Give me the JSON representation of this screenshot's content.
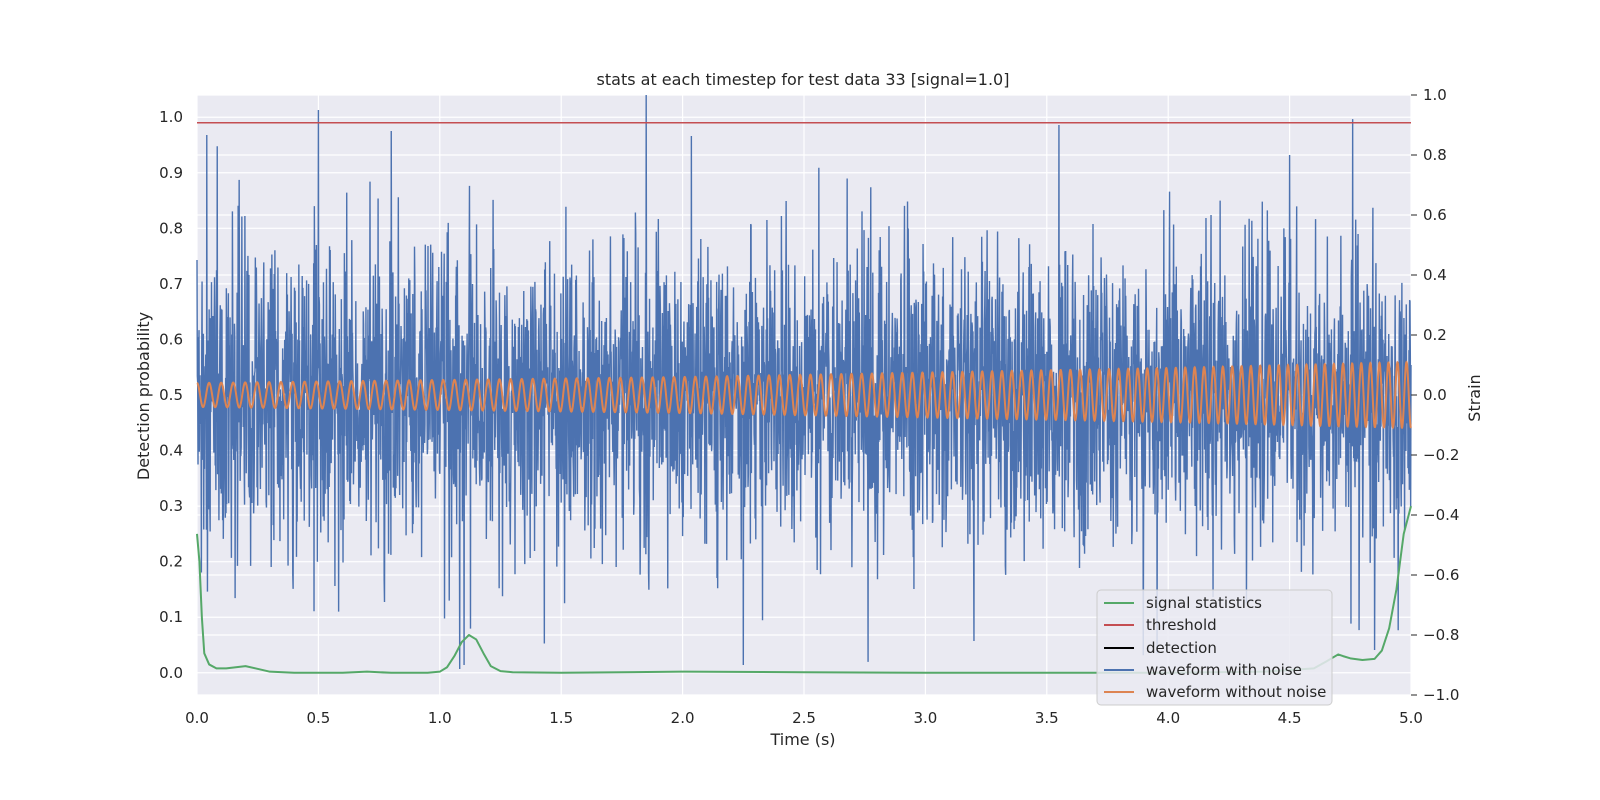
{
  "chart_data": {
    "type": "line",
    "title": "stats at each timestep for test data 33 [signal=1.0]",
    "xlabel": "Time (s)",
    "ylabel": "Detection probability",
    "ylabel_right": "Strain",
    "xlim": [
      0.0,
      5.0
    ],
    "ylim": [
      -0.04,
      1.04
    ],
    "ylim_right": [
      -1.0,
      1.0
    ],
    "x_ticks": [
      "0.0",
      "0.5",
      "1.0",
      "1.5",
      "2.0",
      "2.5",
      "3.0",
      "3.5",
      "4.0",
      "4.5",
      "5.0"
    ],
    "y_ticks": [
      "0.0",
      "0.1",
      "0.2",
      "0.3",
      "0.4",
      "0.5",
      "0.6",
      "0.7",
      "0.8",
      "0.9",
      "1.0"
    ],
    "y_ticks_right": [
      "−1.0",
      "−0.8",
      "−0.6",
      "−0.4",
      "−0.2",
      "0.0",
      "0.2",
      "0.4",
      "0.6",
      "0.8",
      "1.0"
    ],
    "grid": true,
    "background": "#eaeaf2",
    "legend_position": "lower-right",
    "legend": [
      "signal statistics",
      "threshold",
      "detection",
      "waveform with noise",
      "waveform without noise"
    ],
    "colors": {
      "signal_statistics": "#55a868",
      "threshold": "#c44e52",
      "detection": "#000000",
      "waveform_with_noise": "#4c72b0",
      "waveform_without_noise": "#dd8452"
    },
    "series": [
      {
        "name": "signal statistics",
        "axis": "left",
        "x": [
          0.0,
          0.01,
          0.02,
          0.03,
          0.05,
          0.08,
          0.12,
          0.16,
          0.2,
          0.24,
          0.3,
          0.4,
          0.6,
          0.7,
          0.8,
          0.95,
          1.0,
          1.03,
          1.06,
          1.09,
          1.12,
          1.15,
          1.18,
          1.21,
          1.25,
          1.3,
          1.5,
          2.0,
          2.5,
          3.0,
          3.5,
          4.0,
          4.4,
          4.6,
          4.65,
          4.7,
          4.72,
          4.75,
          4.8,
          4.85,
          4.88,
          4.91,
          4.94,
          4.97,
          5.0
        ],
        "values": [
          0.25,
          0.2,
          0.1,
          0.035,
          0.015,
          0.008,
          0.008,
          0.01,
          0.012,
          0.008,
          0.002,
          0.0,
          0.0,
          0.002,
          0.0,
          0.0,
          0.002,
          0.01,
          0.03,
          0.055,
          0.068,
          0.06,
          0.035,
          0.012,
          0.003,
          0.001,
          0.0,
          0.002,
          0.001,
          0.0,
          0.0,
          0.0,
          0.002,
          0.008,
          0.02,
          0.033,
          0.03,
          0.026,
          0.023,
          0.025,
          0.04,
          0.08,
          0.15,
          0.25,
          0.3
        ]
      },
      {
        "name": "threshold",
        "axis": "left",
        "x": [
          0.0,
          5.0
        ],
        "values": [
          0.99,
          0.99
        ]
      },
      {
        "name": "detection",
        "axis": "left",
        "x": [],
        "values": []
      },
      {
        "name": "waveform with noise",
        "axis": "right",
        "description_stats": {
          "mean": 0.0,
          "typical_amplitude": 0.3,
          "max": 1.0,
          "min": -0.9
        },
        "x": [
          0.0,
          0.5,
          0.8,
          1.1,
          1.85,
          2.25,
          3.2,
          3.55,
          4.5,
          4.85,
          5.0
        ],
        "values": [
          0.45,
          0.95,
          0.88,
          -0.9,
          1.0,
          -0.9,
          -0.82,
          0.9,
          0.8,
          -0.85,
          0.1
        ],
        "note_samples": "dense noise samples sampled across 0–5 s"
      },
      {
        "name": "waveform without noise",
        "axis": "right",
        "x": [
          0.0,
          1.0,
          2.0,
          3.0,
          4.0,
          4.5,
          5.0
        ],
        "values": [
          0.04,
          0.05,
          0.06,
          0.075,
          0.09,
          0.1,
          0.11
        ],
        "frequency_hz_start": 20,
        "frequency_hz_end": 27
      }
    ]
  }
}
